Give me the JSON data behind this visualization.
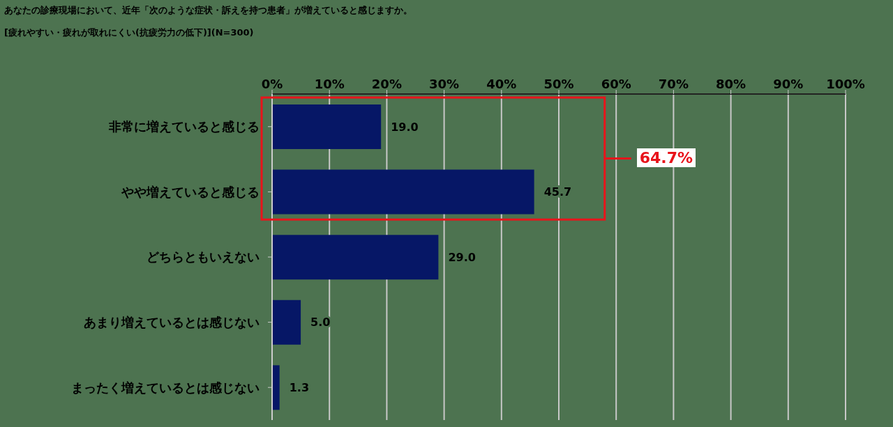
{
  "chart_data": {
    "type": "bar",
    "orientation": "horizontal",
    "title": "あなたの診療現場において、近年「次のような症状・訴えを持つ患者」が増えていると感じますか。",
    "subtitle": "[疲れやすい・疲れが取れにくい(抗疲労力の低下)](N=300)",
    "categories": [
      "非常に増えていると感じる",
      "やや増えていると感じる",
      "どちらともいえない",
      "あまり増えているとは感じない",
      "まったく増えているとは感じない"
    ],
    "values": [
      19.0,
      45.7,
      29.0,
      5.0,
      1.3
    ],
    "value_labels": [
      "19.0",
      "45.7",
      "29.0",
      "5.0",
      "1.3"
    ],
    "color": "#061766",
    "xlim": [
      0,
      100
    ],
    "xticks": [
      {
        "value": 0,
        "label": "0%"
      },
      {
        "value": 10,
        "label": "10%"
      },
      {
        "value": 20,
        "label": "20%"
      },
      {
        "value": 30,
        "label": "30%"
      },
      {
        "value": 40,
        "label": "40%"
      },
      {
        "value": 50,
        "label": "50%"
      },
      {
        "value": 60,
        "label": "60%"
      },
      {
        "value": 70,
        "label": "70%"
      },
      {
        "value": 80,
        "label": "80%"
      },
      {
        "value": 90,
        "label": "90%"
      },
      {
        "value": 100,
        "label": "100%"
      }
    ],
    "grid": "x",
    "annotations": [
      "64.7%"
    ]
  }
}
